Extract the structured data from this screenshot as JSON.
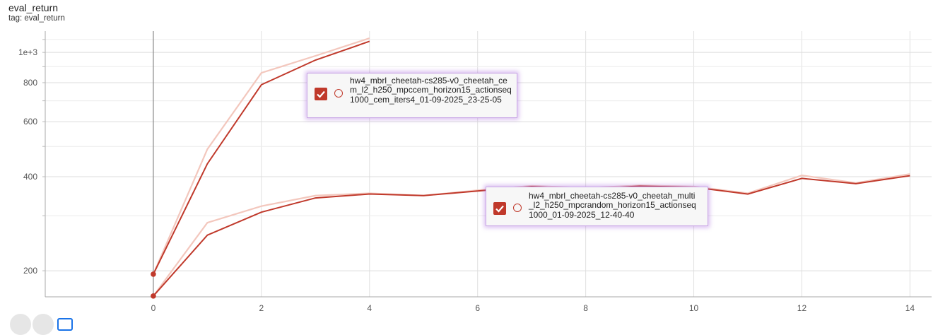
{
  "header": {
    "title": "eval_return",
    "tag": "tag: eval_return"
  },
  "chart_data": {
    "type": "line",
    "title": "eval_return",
    "xlabel": "",
    "ylabel": "",
    "y_scale": "log",
    "xlim": [
      -2,
      14.4
    ],
    "ylim": [
      165,
      1170
    ],
    "x_ticks": [
      0,
      2,
      4,
      6,
      8,
      10,
      12,
      14
    ],
    "x_tick_labels": [
      "0",
      "2",
      "4",
      "6",
      "8",
      "10",
      "12",
      "14"
    ],
    "y_ticks": [
      200,
      400,
      600,
      800,
      1000
    ],
    "y_tick_labels": [
      "200",
      "400",
      "600",
      "800",
      "1e+3"
    ],
    "grid": true,
    "vertical_marker_x": 0,
    "series": [
      {
        "name": "hw4_mbrl_cheetah-cs285-v0_cheetah_cem_l2_h250_mpccem_horizon15_actionseq1000_cem_iters4_01-09-2025_23-25-05",
        "color": "#c0392b",
        "raw_color": "#f3c7bd",
        "x": [
          0,
          1,
          2,
          3,
          4
        ],
        "values": [
          195,
          440,
          788,
          945,
          1085
        ],
        "raw_values": [
          195,
          490,
          860,
          975,
          1110
        ]
      },
      {
        "name": "hw4_mbrl_cheetah-cs285-v0_cheetah_multi_l2_h250_mpcrandom_horizon15_actionseq1000_01-09-2025_12-40-40",
        "color": "#c0392b",
        "raw_color": "#f3c7bd",
        "x": [
          0,
          1,
          2,
          3,
          4,
          5,
          6,
          7,
          8,
          9,
          10,
          11,
          12,
          13,
          14
        ],
        "values": [
          166,
          260,
          308,
          342,
          352,
          348,
          360,
          372,
          365,
          373,
          370,
          352,
          395,
          380,
          403
        ],
        "raw_values": [
          166,
          285,
          322,
          348,
          354,
          348,
          362,
          374,
          368,
          375,
          372,
          354,
          404,
          382,
          408
        ]
      }
    ]
  },
  "tooltips": [
    {
      "series_index": 0,
      "checked": true
    },
    {
      "series_index": 1,
      "checked": true
    }
  ],
  "colors": {
    "series": "#c0392b",
    "raw": "#f3c7bd",
    "tooltip_glow": "#a868dc",
    "grid": "#e0e0e0"
  }
}
